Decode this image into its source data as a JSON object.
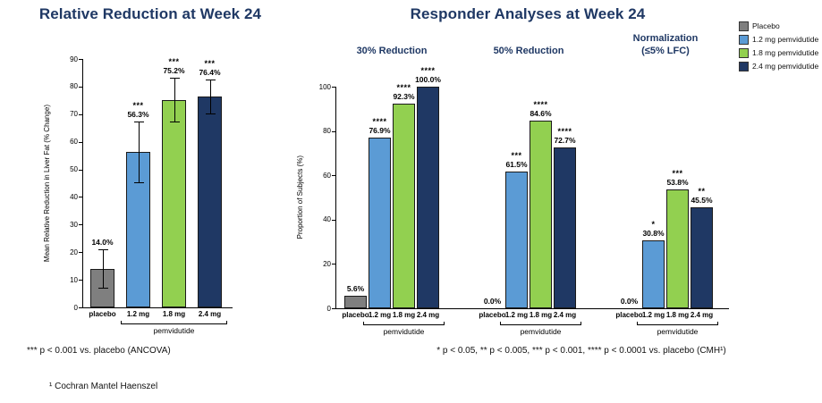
{
  "colors": {
    "title": "#1F3864",
    "axis": "#000000",
    "bar_border": "#1A1A1A",
    "series": [
      "#7F7F7F",
      "#5B9BD5",
      "#92D050",
      "#1F3864"
    ]
  },
  "legend": {
    "items": [
      {
        "label": "Placebo",
        "color": "#7F7F7F"
      },
      {
        "label": "1.2 mg pemvidutide",
        "color": "#5B9BD5"
      },
      {
        "label": "1.8 mg pemvidutide",
        "color": "#92D050"
      },
      {
        "label": "2.4 mg pemvidutide",
        "color": "#1F3864"
      }
    ]
  },
  "chart_data": [
    {
      "type": "bar",
      "title": "Relative Reduction at Week 24",
      "ylabel": "Mean Relative Reduction in Liver Fat (% Change)",
      "ylim": [
        0,
        90
      ],
      "yticks": [
        0,
        10,
        20,
        30,
        40,
        50,
        60,
        70,
        80,
        90
      ],
      "categories": [
        "placebo",
        "1.2 mg",
        "1.8 mg",
        "2.4 mg"
      ],
      "group_label": "pemvidutide",
      "values": [
        14.0,
        56.3,
        75.2,
        76.4
      ],
      "value_labels": [
        "14.0%",
        "56.3%",
        "75.2%",
        "76.4%"
      ],
      "significance": [
        "",
        "***",
        "***",
        "***"
      ],
      "error": [
        7,
        11,
        8,
        6
      ],
      "footnote": "*** p < 0.001 vs. placebo (ANCOVA)"
    },
    {
      "type": "grouped-bar",
      "title": "Responder Analyses at Week 24",
      "ylabel": "Proportion of Subjects (%)",
      "ylim": [
        0,
        100
      ],
      "yticks": [
        0,
        20,
        40,
        60,
        80,
        100
      ],
      "categories": [
        "placebo",
        "1.2 mg",
        "1.8 mg",
        "2.4 mg"
      ],
      "group_label": "pemvidutide",
      "groups": [
        {
          "name": "30% Reduction",
          "values": [
            5.6,
            76.9,
            92.3,
            100.0
          ],
          "value_labels": [
            "5.6%",
            "76.9%",
            "92.3%",
            "100.0%"
          ],
          "significance": [
            "",
            "****",
            "****",
            "****"
          ]
        },
        {
          "name": "50% Reduction",
          "values": [
            0.0,
            61.5,
            84.6,
            72.7
          ],
          "value_labels": [
            "0.0%",
            "61.5%",
            "84.6%",
            "72.7%"
          ],
          "significance": [
            "",
            "***",
            "****",
            "****"
          ]
        },
        {
          "name": "Normalization\n(≤5% LFC)",
          "values": [
            0.0,
            30.8,
            53.8,
            45.5
          ],
          "value_labels": [
            "0.0%",
            "30.8%",
            "53.8%",
            "45.5%"
          ],
          "significance": [
            "",
            "*",
            "***",
            "**"
          ]
        }
      ],
      "footnote": "* p < 0.05, ** p < 0.005, *** p < 0.001, **** p < 0.0001 vs. placebo (CMH¹)"
    }
  ],
  "footnotes": {
    "bottom": "¹ Cochran Mantel Haenszel"
  }
}
